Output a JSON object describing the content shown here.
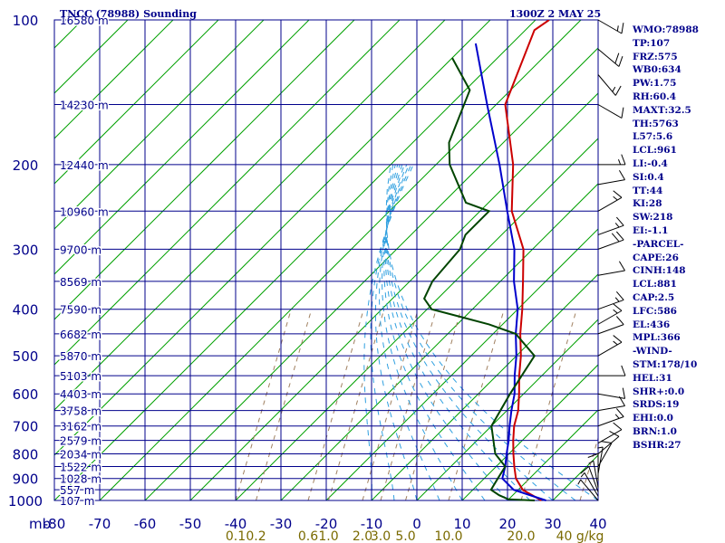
{
  "header": {
    "station": "TNCC (78988) Sounding",
    "time": "1300Z  2 MAY 25"
  },
  "stats": [
    "WMO:78988",
    "TP:107",
    "FRZ:575",
    "WB0:634",
    "PW:1.75",
    "RH:60.4",
    "MAXT:32.5",
    "TH:5763",
    "L57:5.6",
    "LCL:961",
    "LI:-0.4",
    "SI:0.4",
    "TT:44",
    "KI:28",
    "SW:218",
    "EI:-1.1",
    "-PARCEL-",
    "CAPE:26",
    "CINH:148",
    "LCL:881",
    "CAP:2.5",
    "LFC:586",
    "EL:436",
    "MPL:366",
    "-WIND-",
    "STM:178/10",
    "HEL:31",
    "SHR+:0.0",
    "SRDS:19",
    "EHI:0.0",
    "BRN:1.0",
    "BSHR:27"
  ],
  "colors": {
    "grid": "#00008b",
    "isotherm": "#00a000",
    "mixing_ratio": "#a08060",
    "moist_adiabat": "#30a0e0",
    "temperature": "#cc0000",
    "parcel": "#0000cc",
    "dewpoint": "#004400",
    "text": "#00008b"
  },
  "chart_data": {
    "type": "line",
    "title": "",
    "xlabel": "",
    "ylabel": "",
    "ylim": [
      1000,
      100
    ],
    "xlim": [
      -80,
      40
    ],
    "x_units_label": "mb",
    "x_ticks": [
      -80,
      -70,
      -60,
      -50,
      -40,
      -30,
      -20,
      -10,
      0,
      10,
      20,
      30,
      40
    ],
    "x_tick_labels": [
      "-80",
      "-70",
      "-60",
      "-50",
      "-40",
      "-30",
      "-20",
      "-10",
      "0",
      "10",
      "20",
      "30",
      "40"
    ],
    "pressure_ticks": [
      100,
      200,
      300,
      400,
      500,
      600,
      700,
      800,
      900,
      1000
    ],
    "pressure_tick_labels": [
      "100",
      "200",
      "300",
      "400",
      "500",
      "600",
      "700",
      "800",
      "900",
      "1000"
    ],
    "height_labels": [
      {
        "p": 100,
        "label": "16580 m"
      },
      {
        "p": 150,
        "label": "14230 m"
      },
      {
        "p": 200,
        "label": "12440 m"
      },
      {
        "p": 250,
        "label": "10960 m"
      },
      {
        "p": 300,
        "label": "9700 m"
      },
      {
        "p": 350,
        "label": "8569 m"
      },
      {
        "p": 400,
        "label": "7590 m"
      },
      {
        "p": 450,
        "label": "6682 m"
      },
      {
        "p": 500,
        "label": "5870 m"
      },
      {
        "p": 550,
        "label": "5103 m"
      },
      {
        "p": 600,
        "label": "4403 m"
      },
      {
        "p": 650,
        "label": "3758 m"
      },
      {
        "p": 700,
        "label": "3162 m"
      },
      {
        "p": 750,
        "label": "2579 m"
      },
      {
        "p": 800,
        "label": "2034 m"
      },
      {
        "p": 850,
        "label": "1522 m"
      },
      {
        "p": 900,
        "label": "1028 m"
      },
      {
        "p": 950,
        "label": "557 m"
      },
      {
        "p": 1000,
        "label": "107 m"
      }
    ],
    "mixing_ratio_labels": [
      "0.1",
      "0.2",
      "0.6",
      "1.0",
      "2.0",
      "3.0",
      "5.0",
      "10.0",
      "20.0",
      "40 g/kg"
    ],
    "mixing_ratio_label_x": [
      -40,
      -35.5,
      -24,
      -19.5,
      -12,
      -8,
      -2.5,
      7,
      23,
      36
    ],
    "series": [
      {
        "points": [
          {
            "t": 27.5,
            "p": 1000
          },
          {
            "t": 21,
            "p": 950
          },
          {
            "t": 17,
            "p": 900
          },
          {
            "t": 14,
            "p": 850
          },
          {
            "t": 11,
            "p": 800
          },
          {
            "t": 8,
            "p": 750
          },
          {
            "t": 5,
            "p": 700
          },
          {
            "t": 2.5,
            "p": 650
          },
          {
            "t": -1,
            "p": 600
          },
          {
            "t": -5,
            "p": 550
          },
          {
            "t": -9,
            "p": 500
          },
          {
            "t": -14,
            "p": 450
          },
          {
            "t": -19,
            "p": 400
          },
          {
            "t": -25,
            "p": 350
          },
          {
            "t": -32,
            "p": 300
          },
          {
            "t": -43,
            "p": 250
          },
          {
            "t": -53,
            "p": 200
          },
          {
            "t": -68,
            "p": 150
          },
          {
            "t": -78,
            "p": 105
          },
          {
            "t": -77,
            "p": 100
          }
        ]
      },
      {
        "points": [
          {
            "t": 28.5,
            "p": 1000
          },
          {
            "t": 19,
            "p": 950
          },
          {
            "t": 14,
            "p": 900
          },
          {
            "t": 12,
            "p": 850
          },
          {
            "t": 9.5,
            "p": 800
          },
          {
            "t": 7,
            "p": 750
          },
          {
            "t": 4,
            "p": 700
          },
          {
            "t": 1,
            "p": 650
          },
          {
            "t": -2,
            "p": 600
          },
          {
            "t": -6,
            "p": 550
          },
          {
            "t": -10,
            "p": 500
          },
          {
            "t": -15,
            "p": 450
          },
          {
            "t": -20,
            "p": 400
          },
          {
            "t": -27,
            "p": 350
          },
          {
            "t": -34,
            "p": 300
          },
          {
            "t": -44,
            "p": 250
          },
          {
            "t": -56,
            "p": 200
          },
          {
            "t": -72,
            "p": 150
          },
          {
            "t": -88,
            "p": 112
          }
        ]
      },
      {
        "points": [
          {
            "t": 26,
            "p": 1000
          },
          {
            "t": 20,
            "p": 995
          },
          {
            "t": 17,
            "p": 975
          },
          {
            "t": 14,
            "p": 950
          },
          {
            "t": 13,
            "p": 900
          },
          {
            "t": 12,
            "p": 850
          },
          {
            "t": 7,
            "p": 800
          },
          {
            "t": 0,
            "p": 700
          },
          {
            "t": -3,
            "p": 600
          },
          {
            "t": -6,
            "p": 500
          },
          {
            "t": -15,
            "p": 450
          },
          {
            "t": -23,
            "p": 430
          },
          {
            "t": -39,
            "p": 400
          },
          {
            "t": -43,
            "p": 380
          },
          {
            "t": -45,
            "p": 350
          },
          {
            "t": -46,
            "p": 300
          },
          {
            "t": -48,
            "p": 280
          },
          {
            "t": -48,
            "p": 250
          },
          {
            "t": -55,
            "p": 240
          },
          {
            "t": -67,
            "p": 200
          },
          {
            "t": -72,
            "p": 180
          },
          {
            "t": -79,
            "p": 140
          },
          {
            "t": -90,
            "p": 120
          }
        ]
      }
    ],
    "wind_barbs": [
      {
        "p": 100,
        "dir": 300,
        "spd": 15
      },
      {
        "p": 115,
        "dir": 310,
        "spd": 20
      },
      {
        "p": 130,
        "dir": 320,
        "spd": 15
      },
      {
        "p": 150,
        "dir": 300,
        "spd": 10
      },
      {
        "p": 200,
        "dir": 270,
        "spd": 15
      },
      {
        "p": 220,
        "dir": 260,
        "spd": 10
      },
      {
        "p": 250,
        "dir": 240,
        "spd": 15
      },
      {
        "p": 280,
        "dir": 250,
        "spd": 15
      },
      {
        "p": 300,
        "dir": 250,
        "spd": 20
      },
      {
        "p": 340,
        "dir": 260,
        "spd": 10
      },
      {
        "p": 400,
        "dir": 250,
        "spd": 15
      },
      {
        "p": 430,
        "dir": 240,
        "spd": 15
      },
      {
        "p": 450,
        "dir": 250,
        "spd": 10
      },
      {
        "p": 500,
        "dir": 240,
        "spd": 15
      },
      {
        "p": 550,
        "dir": 270,
        "spd": 10
      },
      {
        "p": 600,
        "dir": 280,
        "spd": 10
      },
      {
        "p": 650,
        "dir": 260,
        "spd": 10
      },
      {
        "p": 700,
        "dir": 250,
        "spd": 15
      },
      {
        "p": 760,
        "dir": 240,
        "spd": 10
      },
      {
        "p": 800,
        "dir": 230,
        "spd": 10
      },
      {
        "p": 850,
        "dir": 210,
        "spd": 10
      },
      {
        "p": 880,
        "dir": 190,
        "spd": 5
      },
      {
        "p": 910,
        "dir": 180,
        "spd": 10
      },
      {
        "p": 940,
        "dir": 170,
        "spd": 5
      },
      {
        "p": 960,
        "dir": 160,
        "spd": 10
      },
      {
        "p": 980,
        "dir": 150,
        "spd": 5
      },
      {
        "p": 1000,
        "dir": 140,
        "spd": 5
      }
    ]
  }
}
